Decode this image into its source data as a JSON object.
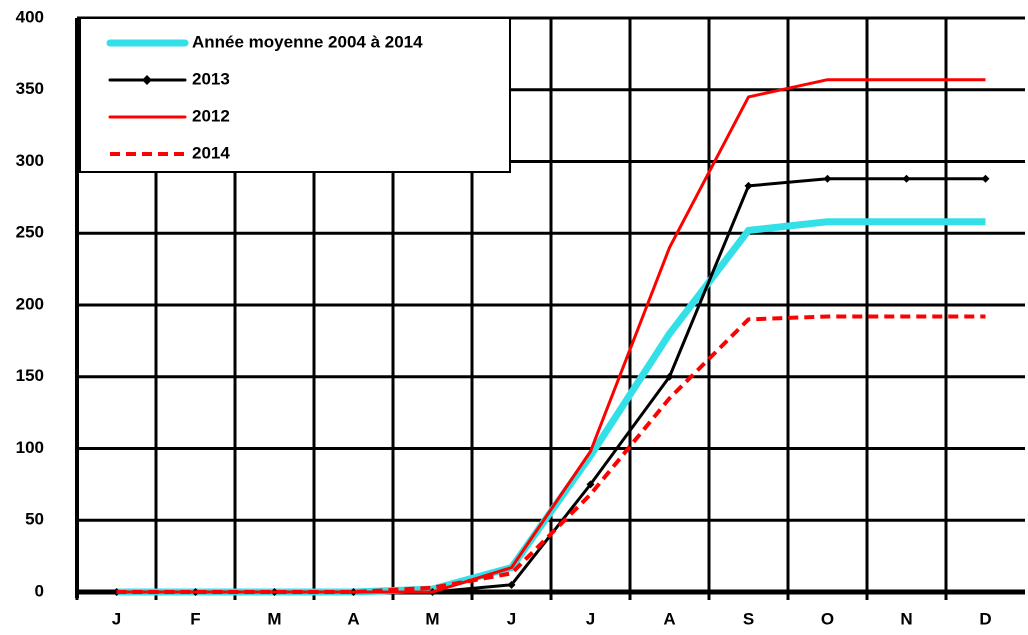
{
  "chart_data": {
    "type": "line",
    "categories": [
      "J",
      "F",
      "M",
      "A",
      "M",
      "J",
      "J",
      "A",
      "S",
      "O",
      "N",
      "D"
    ],
    "series": [
      {
        "name": "Année moyenne 2004 à 2014",
        "color": "#33e0e8",
        "line_width": 7,
        "values": [
          0,
          0,
          0,
          0,
          2,
          17,
          95,
          180,
          252,
          258,
          258,
          258
        ]
      },
      {
        "name": "2013",
        "color": "#000000",
        "line_width": 3,
        "marker": "diamond",
        "values": [
          0,
          0,
          0,
          0,
          0,
          5,
          75,
          150,
          283,
          288,
          288,
          288
        ]
      },
      {
        "name": "2012",
        "color": "#ff0000",
        "line_width": 3,
        "values": [
          0,
          0,
          0,
          0,
          0,
          17,
          98,
          240,
          345,
          357,
          357,
          357
        ]
      },
      {
        "name": "2014",
        "color": "#ff0000",
        "line_width": 4,
        "style": "dashed",
        "values": [
          0,
          0,
          0,
          0,
          3,
          13,
          68,
          135,
          190,
          192,
          192,
          192
        ]
      }
    ],
    "ylim": [
      0,
      400
    ],
    "yticks": [
      0,
      50,
      100,
      150,
      200,
      250,
      300,
      350,
      400
    ],
    "grid": true,
    "legend": "upper left"
  }
}
